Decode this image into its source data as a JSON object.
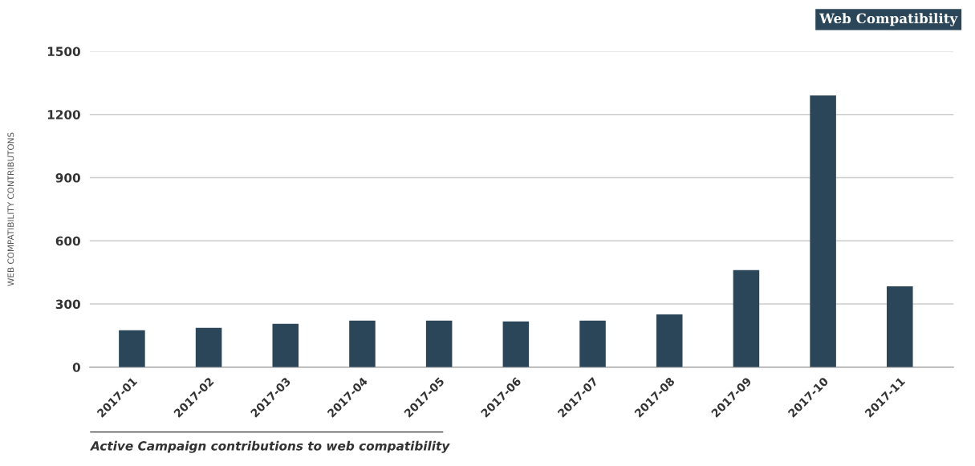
{
  "chart_data": {
    "type": "bar",
    "title": "Web Compatibility",
    "ylabel": "WEB COMPATIBILITY CONTRIBUTONS",
    "categories": [
      "2017-01",
      "2017-02",
      "2017-03",
      "2017-04",
      "2017-05",
      "2017-06",
      "2017-07",
      "2017-08",
      "2017-09",
      "2017-10",
      "2017-11"
    ],
    "values": [
      175,
      187,
      206,
      221,
      221,
      217,
      221,
      251,
      461,
      1290,
      384
    ],
    "color": "#2b4658",
    "ylim": [
      0,
      1500
    ],
    "yticks": [
      0,
      300,
      600,
      900,
      1200,
      1500
    ],
    "grid": "y",
    "annotations": [
      "Active Campaign contributions to web compatibility"
    ]
  }
}
